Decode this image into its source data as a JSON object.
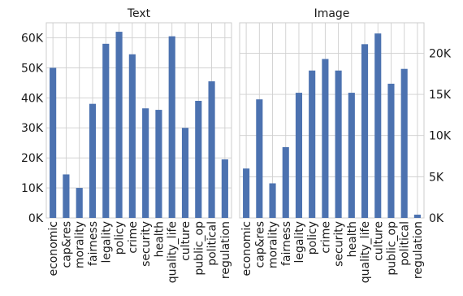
{
  "colors": {
    "bar": "#4c72b0",
    "grid": "#cfcfcf",
    "frame": "#cccccc",
    "text": "#1a1a1a"
  },
  "chart_data": [
    {
      "type": "bar",
      "title": "Text",
      "categories": [
        "economic",
        "cap&res",
        "morality",
        "fairness",
        "legality",
        "policy",
        "crime",
        "security",
        "health",
        "quality_life",
        "culture",
        "public_op",
        "political",
        "regulation"
      ],
      "values": [
        50000,
        14500,
        10000,
        38000,
        58000,
        62000,
        54500,
        36500,
        36000,
        60500,
        30000,
        39000,
        45500,
        19500
      ],
      "ylim": [
        0,
        65000
      ],
      "yticks": [
        0,
        10000,
        20000,
        30000,
        40000,
        50000,
        60000
      ],
      "yticklabels": [
        "0K",
        "10K",
        "20K",
        "30K",
        "40K",
        "50K",
        "60K"
      ],
      "yaxis_side": "left",
      "grid": true,
      "xlabel": "",
      "ylabel": ""
    },
    {
      "type": "bar",
      "title": "Image",
      "categories": [
        "economic",
        "cap&res",
        "morality",
        "fairness",
        "legality",
        "policy",
        "crime",
        "security",
        "health",
        "quality_life",
        "culture",
        "public_op",
        "political",
        "regulation"
      ],
      "values": [
        6000,
        14400,
        4200,
        8600,
        15200,
        17900,
        19300,
        17900,
        15200,
        21100,
        22400,
        16300,
        18100,
        400
      ],
      "ylim": [
        0,
        23700
      ],
      "yticks": [
        0,
        5000,
        10000,
        15000,
        20000
      ],
      "yticklabels": [
        "0K",
        "5K",
        "10K",
        "15K",
        "20K"
      ],
      "yaxis_side": "right",
      "grid": true,
      "xlabel": "",
      "ylabel": ""
    }
  ]
}
